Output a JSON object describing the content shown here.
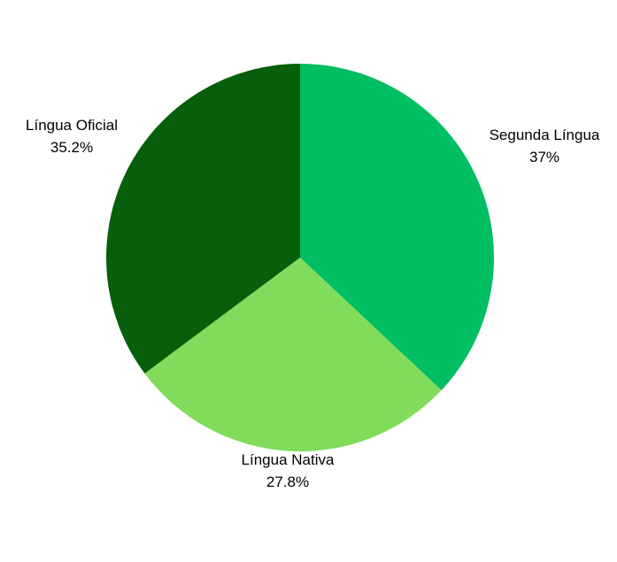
{
  "chart_data": {
    "type": "pie",
    "slices": [
      {
        "label": "Segunda Língua",
        "value": 37.0,
        "value_label": "37%",
        "color": "#00BE62"
      },
      {
        "label": "Língua Nativa",
        "value": 27.8,
        "value_label": "27.8%",
        "color": "#80DC5A"
      },
      {
        "label": "Língua Oficial",
        "value": 35.2,
        "value_label": "35.2%",
        "color": "#075E0B"
      }
    ],
    "start_angle": "12 o'clock",
    "direction": "clockwise",
    "legend": "none",
    "labels": "outside"
  }
}
